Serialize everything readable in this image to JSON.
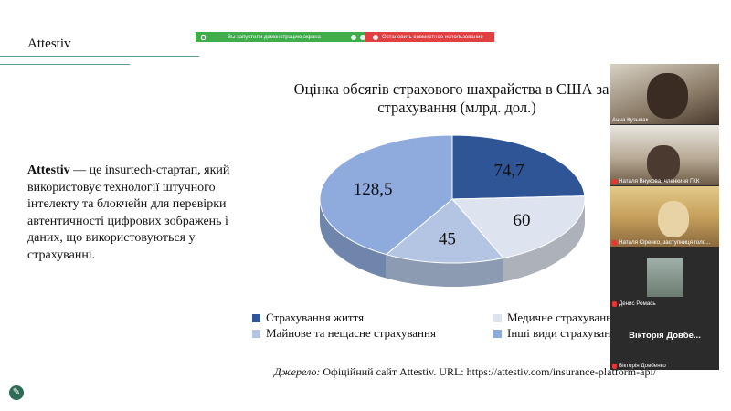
{
  "share_bar": {
    "sharing_text": "Вы запустили демонстрацию экрана",
    "stop_text": "Остановить совместное использование"
  },
  "slide": {
    "title": "Attestiv",
    "body_bold": "Attestiv",
    "body_text": " — це insurtech-стартап, який використовує технології штучного інтелекту та блокчейн для перевірки автентичності цифрових зображень і даних, що використовуються у страхуванні.",
    "source_label": "Джерело:",
    "source_text": " Офіційний сайт Attestiv. URL: https://attestiv.com/insurance-platform-api/"
  },
  "chart_data": {
    "type": "pie",
    "title": "Оцінка обсягів страхового шахрайства в США за в... страхування (млрд. дол.)",
    "title_line1": "Оцінка обсягів страхового шахрайства в США за в",
    "title_line2": "страхування (млрд. дол.)",
    "categories": [
      "Страхування життя",
      "Медичне страхуванн",
      "Майнове та нещасне страхування",
      "Інші види страхуван"
    ],
    "values": [
      74.7,
      60,
      45,
      128.5
    ],
    "labels": [
      "74,7",
      "60",
      "45",
      "128,5"
    ],
    "colors": [
      "#2f5597",
      "#dde3ef",
      "#b4c5e4",
      "#8faadc"
    ],
    "legend_position": "bottom"
  },
  "participants": [
    {
      "name": "Анна Кузьмак",
      "muted": false
    },
    {
      "name": "Наталя Внукова, членкиня ГКК",
      "muted": true
    },
    {
      "name": "Наталя Сіренко, заступниця голо...",
      "muted": true
    },
    {
      "name": "Денис Ромась",
      "muted": true
    },
    {
      "name": "Вікторія Довбенко",
      "muted": true,
      "display_name": "Вікторія Довбе..."
    }
  ]
}
